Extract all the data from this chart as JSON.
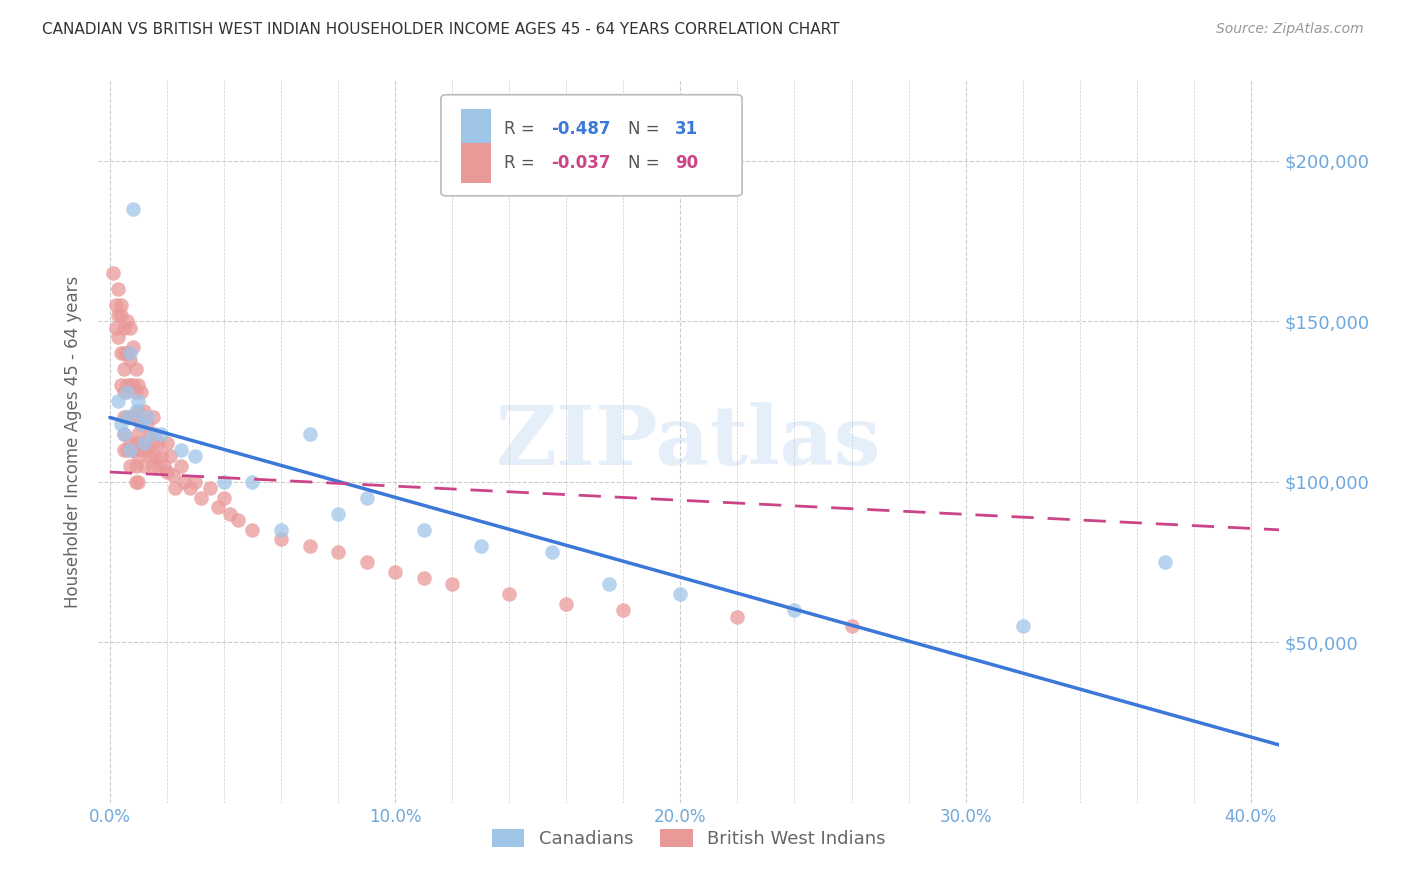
{
  "title": "CANADIAN VS BRITISH WEST INDIAN HOUSEHOLDER INCOME AGES 45 - 64 YEARS CORRELATION CHART",
  "source": "Source: ZipAtlas.com",
  "ylabel": "Householder Income Ages 45 - 64 years",
  "xlabel_ticks": [
    "0.0%",
    "",
    "",
    "",
    "",
    "10.0%",
    "",
    "",
    "",
    "",
    "20.0%",
    "",
    "",
    "",
    "",
    "30.0%",
    "",
    "",
    "",
    "",
    "40.0%"
  ],
  "xlabel_vals": [
    0.0,
    0.02,
    0.04,
    0.06,
    0.08,
    0.1,
    0.12,
    0.14,
    0.16,
    0.18,
    0.2,
    0.22,
    0.24,
    0.26,
    0.28,
    0.3,
    0.32,
    0.34,
    0.36,
    0.38,
    0.4
  ],
  "ytick_vals": [
    50000,
    100000,
    150000,
    200000
  ],
  "ylim": [
    0,
    225000
  ],
  "xlim": [
    -0.004,
    0.41
  ],
  "canadian_R": -0.487,
  "canadian_N": 31,
  "bwi_R": -0.037,
  "bwi_N": 90,
  "canadian_color": "#9fc5e8",
  "bwi_color": "#ea9999",
  "canadian_line_color": "#3c78d8",
  "bwi_line_color": "#cc4488",
  "background_color": "#ffffff",
  "grid_color": "#cccccc",
  "watermark_text": "ZIPatlas",
  "title_color": "#333333",
  "source_color": "#999999",
  "axis_label_color": "#666666",
  "tick_label_color": "#6fa8dc",
  "canadians_x": [
    0.003,
    0.004,
    0.005,
    0.006,
    0.006,
    0.007,
    0.007,
    0.008,
    0.009,
    0.01,
    0.011,
    0.012,
    0.013,
    0.015,
    0.018,
    0.025,
    0.03,
    0.04,
    0.05,
    0.06,
    0.07,
    0.08,
    0.09,
    0.11,
    0.13,
    0.155,
    0.175,
    0.2,
    0.24,
    0.32,
    0.37
  ],
  "canadians_y": [
    125000,
    118000,
    115000,
    120000,
    128000,
    110000,
    140000,
    185000,
    122000,
    125000,
    118000,
    112000,
    120000,
    115000,
    115000,
    110000,
    108000,
    100000,
    100000,
    85000,
    115000,
    90000,
    95000,
    85000,
    80000,
    78000,
    68000,
    65000,
    60000,
    55000,
    75000
  ],
  "bwi_x": [
    0.001,
    0.002,
    0.002,
    0.003,
    0.003,
    0.003,
    0.004,
    0.004,
    0.004,
    0.004,
    0.005,
    0.005,
    0.005,
    0.005,
    0.005,
    0.005,
    0.005,
    0.006,
    0.006,
    0.006,
    0.006,
    0.006,
    0.007,
    0.007,
    0.007,
    0.007,
    0.007,
    0.007,
    0.008,
    0.008,
    0.008,
    0.008,
    0.009,
    0.009,
    0.009,
    0.009,
    0.009,
    0.009,
    0.01,
    0.01,
    0.01,
    0.01,
    0.01,
    0.011,
    0.011,
    0.011,
    0.012,
    0.012,
    0.012,
    0.013,
    0.013,
    0.014,
    0.014,
    0.015,
    0.015,
    0.015,
    0.016,
    0.016,
    0.017,
    0.017,
    0.018,
    0.019,
    0.02,
    0.02,
    0.021,
    0.022,
    0.023,
    0.025,
    0.026,
    0.028,
    0.03,
    0.032,
    0.035,
    0.038,
    0.04,
    0.042,
    0.045,
    0.05,
    0.06,
    0.07,
    0.08,
    0.09,
    0.1,
    0.11,
    0.12,
    0.14,
    0.16,
    0.18,
    0.22,
    0.26
  ],
  "bwi_y": [
    165000,
    155000,
    148000,
    152000,
    160000,
    145000,
    152000,
    140000,
    130000,
    155000,
    148000,
    140000,
    135000,
    128000,
    120000,
    115000,
    110000,
    150000,
    140000,
    130000,
    120000,
    110000,
    148000,
    138000,
    130000,
    120000,
    112000,
    105000,
    142000,
    130000,
    120000,
    110000,
    135000,
    128000,
    120000,
    112000,
    105000,
    100000,
    130000,
    122000,
    115000,
    108000,
    100000,
    128000,
    118000,
    110000,
    122000,
    112000,
    105000,
    118000,
    110000,
    115000,
    108000,
    120000,
    112000,
    105000,
    115000,
    108000,
    112000,
    105000,
    108000,
    105000,
    112000,
    103000,
    108000,
    102000,
    98000,
    105000,
    100000,
    98000,
    100000,
    95000,
    98000,
    92000,
    95000,
    90000,
    88000,
    85000,
    82000,
    80000,
    78000,
    75000,
    72000,
    70000,
    68000,
    65000,
    62000,
    60000,
    58000,
    55000
  ],
  "canadian_trendline_x": [
    0.0,
    0.41
  ],
  "canadian_trendline_y": [
    120000,
    18000
  ],
  "bwi_trendline_x": [
    0.0,
    0.41
  ],
  "bwi_trendline_y": [
    103000,
    85000
  ]
}
